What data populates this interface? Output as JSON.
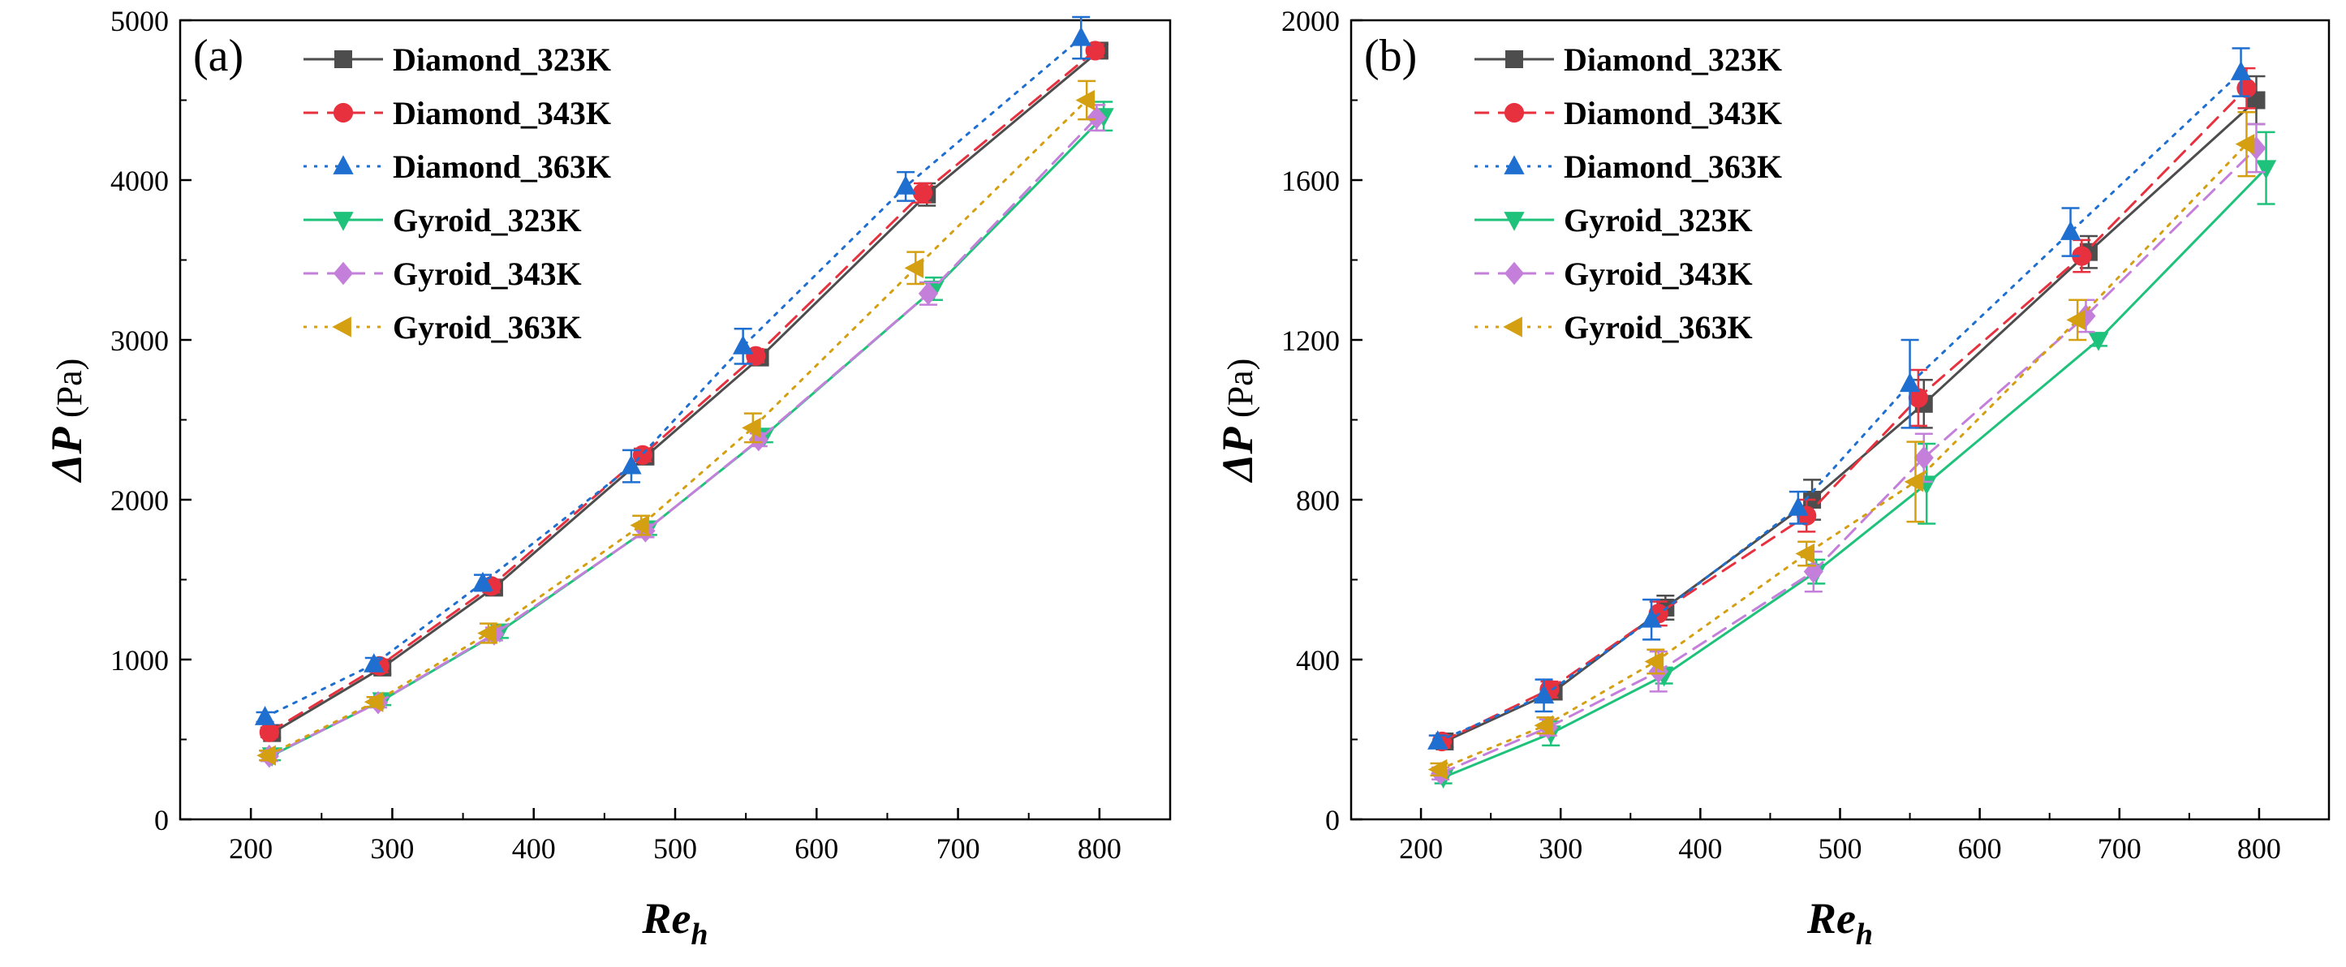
{
  "figure": {
    "panels": [
      {
        "label": "(a)",
        "chart_data": {
          "type": "line",
          "title": "",
          "xlabel_main": "Re",
          "xlabel_sub": "h",
          "ylabel_main": "ΔP",
          "ylabel_unit": "(Pa)",
          "xlim": [
            150,
            850
          ],
          "ylim": [
            0,
            5000
          ],
          "xticks": [
            200,
            300,
            400,
            500,
            600,
            700,
            800
          ],
          "yticks": [
            0,
            1000,
            2000,
            3000,
            4000,
            5000
          ],
          "legend_position": "top-left",
          "series": [
            {
              "name": "Diamond_323K",
              "color": "#4d4d4d",
              "marker": "square",
              "dash": "solid",
              "x": [
                215,
                293,
                372,
                479,
                560,
                678,
                800
              ],
              "y": [
                540,
                950,
                1450,
                2270,
                2890,
                3910,
                4810
              ],
              "err": [
                30,
                40,
                40,
                40,
                40,
                70,
                40
              ]
            },
            {
              "name": "Diamond_343K",
              "color": "#e8313f",
              "marker": "circle",
              "dash": "dashed",
              "x": [
                213,
                291,
                370,
                477,
                557,
                675,
                797
              ],
              "y": [
                545,
                960,
                1460,
                2280,
                2900,
                3920,
                4810
              ],
              "err": [
                30,
                40,
                40,
                40,
                40,
                60,
                40
              ]
            },
            {
              "name": "Diamond_363K",
              "color": "#1f6fd1",
              "marker": "triangle-up",
              "dash": "dotted",
              "x": [
                210,
                287,
                364,
                469,
                548,
                663,
                787
              ],
              "y": [
                640,
                970,
                1480,
                2210,
                2960,
                3960,
                4890
              ],
              "err": [
                30,
                40,
                50,
                100,
                110,
                90,
                130
              ]
            },
            {
              "name": "Gyroid_323K",
              "color": "#1fc27a",
              "marker": "triangle-down",
              "dash": "solid",
              "x": [
                215,
                293,
                376,
                481,
                563,
                683,
                803
              ],
              "y": [
                400,
                745,
                1175,
                1820,
                2400,
                3320,
                4400
              ],
              "err": [
                30,
                30,
                40,
                40,
                40,
                70,
                90
              ]
            },
            {
              "name": "Gyroid_343K",
              "color": "#c47fdb",
              "marker": "diamond",
              "dash": "dashed",
              "x": [
                213,
                290,
                372,
                479,
                559,
                679,
                798
              ],
              "y": [
                395,
                730,
                1160,
                1805,
                2375,
                3290,
                4390
              ],
              "err": [
                30,
                30,
                40,
                40,
                40,
                70,
                80
              ]
            },
            {
              "name": "Gyroid_363K",
              "color": "#d4a012",
              "marker": "triangle-left",
              "dash": "dotted",
              "x": [
                212,
                288,
                368,
                476,
                555,
                670,
                791
              ],
              "y": [
                400,
                735,
                1165,
                1840,
                2450,
                3450,
                4500
              ],
              "err": [
                30,
                30,
                60,
                60,
                90,
                100,
                120
              ]
            }
          ]
        },
        "legend": [
          "Diamond_323K",
          "Diamond_343K",
          "Diamond_363K",
          "Gyroid_323K",
          "Gyroid_343K",
          "Gyroid_363K"
        ]
      },
      {
        "label": "(b)",
        "chart_data": {
          "type": "line",
          "title": "",
          "xlabel_main": "Re",
          "xlabel_sub": "h",
          "ylabel_main": "ΔP",
          "ylabel_unit": "(Pa)",
          "xlim": [
            150,
            850
          ],
          "ylim": [
            0,
            2000
          ],
          "xticks": [
            200,
            300,
            400,
            500,
            600,
            700,
            800
          ],
          "yticks": [
            0,
            400,
            800,
            1200,
            1600,
            2000
          ],
          "legend_position": "top-left",
          "series": [
            {
              "name": "Diamond_323K",
              "color": "#4d4d4d",
              "marker": "square",
              "dash": "solid",
              "x": [
                217,
                295,
                375,
                480,
                560,
                678,
                798
              ],
              "y": [
                195,
                320,
                530,
                800,
                1040,
                1420,
                1800
              ],
              "err": [
                15,
                20,
                30,
                50,
                60,
                40,
                60
              ]
            },
            {
              "name": "Diamond_343K",
              "color": "#e8313f",
              "marker": "circle",
              "dash": "dashed",
              "x": [
                215,
                292,
                370,
                476,
                556,
                673,
                791
              ],
              "y": [
                195,
                325,
                515,
                760,
                1055,
                1410,
                1830
              ],
              "err": [
                15,
                20,
                30,
                40,
                70,
                40,
                50
              ]
            },
            {
              "name": "Diamond_363K",
              "color": "#1f6fd1",
              "marker": "triangle-up",
              "dash": "dotted",
              "x": [
                212,
                288,
                365,
                470,
                550,
                665,
                787
              ],
              "y": [
                195,
                310,
                500,
                780,
                1090,
                1470,
                1870
              ],
              "err": [
                15,
                40,
                50,
                40,
                110,
                60,
                60
              ]
            },
            {
              "name": "Gyroid_323K",
              "color": "#1fc27a",
              "marker": "triangle-down",
              "dash": "solid",
              "x": [
                216,
                293,
                374,
                483,
                562,
                685,
                805
              ],
              "y": [
                105,
                215,
                360,
                620,
                840,
                1200,
                1630
              ],
              "err": [
                15,
                30,
                20,
                30,
                100,
                15,
                90
              ]
            },
            {
              "name": "Gyroid_343K",
              "color": "#c47fdb",
              "marker": "diamond",
              "dash": "dashed",
              "x": [
                214,
                291,
                370,
                481,
                560,
                676,
                798
              ],
              "y": [
                115,
                230,
                370,
                620,
                905,
                1260,
                1680
              ],
              "err": [
                15,
                20,
                50,
                50,
                60,
                40,
                60
              ]
            },
            {
              "name": "Gyroid_363K",
              "color": "#d4a012",
              "marker": "triangle-left",
              "dash": "dotted",
              "x": [
                213,
                289,
                368,
                476,
                554,
                670,
                791
              ],
              "y": [
                125,
                235,
                395,
                665,
                845,
                1250,
                1690
              ],
              "err": [
                15,
                20,
                30,
                30,
                100,
                50,
                80
              ]
            }
          ]
        },
        "legend": [
          "Diamond_323K",
          "Diamond_343K",
          "Diamond_363K",
          "Gyroid_323K",
          "Gyroid_343K",
          "Gyroid_363K"
        ]
      }
    ]
  }
}
